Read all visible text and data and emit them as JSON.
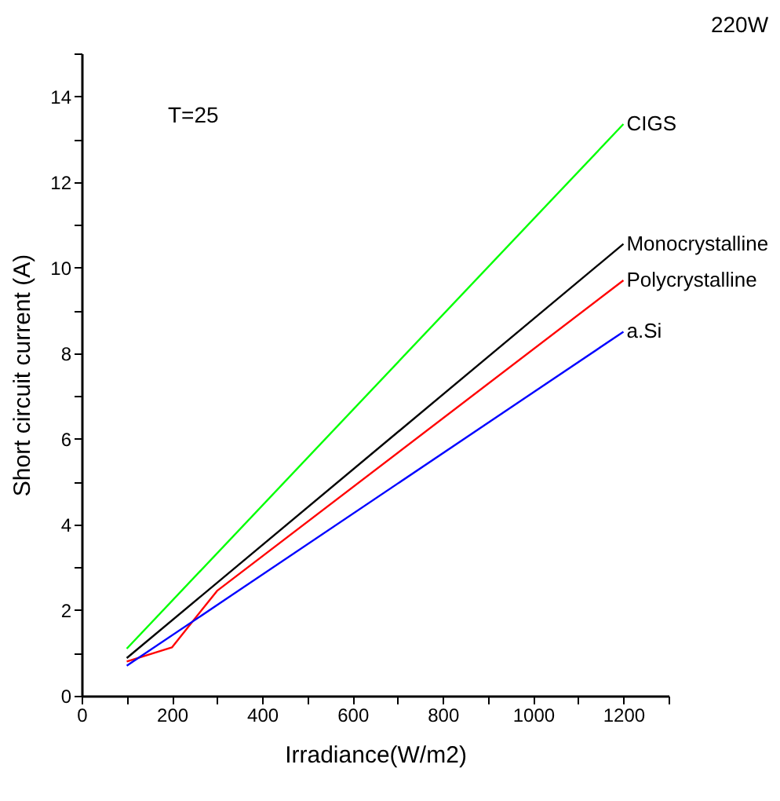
{
  "chart_data": {
    "type": "line",
    "title": "220W",
    "xlabel": "Irradiance(W/m2)",
    "ylabel": "Short circuit current (A)",
    "annotations": [
      "T=25"
    ],
    "xlim": [
      0,
      1300
    ],
    "xticks": [
      0,
      {
        "value": 100,
        "label": null
      },
      200,
      {
        "value": 300,
        "label": null
      },
      400,
      {
        "value": 500,
        "label": null
      },
      600,
      {
        "value": 700,
        "label": null
      },
      800,
      {
        "value": 900,
        "label": null
      },
      1000,
      {
        "value": 1100,
        "label": null
      },
      1200,
      {
        "value": 1300,
        "label": null
      }
    ],
    "ylim": [
      0,
      15
    ],
    "yticks": [
      0,
      {
        "value": 1,
        "label": null
      },
      2,
      {
        "value": 3,
        "label": null
      },
      4,
      {
        "value": 5,
        "label": null
      },
      6,
      {
        "value": 7,
        "label": null
      },
      8,
      {
        "value": 9,
        "label": null
      },
      10,
      {
        "value": 11,
        "label": null
      },
      12,
      {
        "value": 13,
        "label": null
      },
      14,
      {
        "value": 15,
        "label": null
      }
    ],
    "grid": false,
    "marker": "none",
    "line_style": "solid",
    "series": [
      {
        "name": "CIGS",
        "color": "#00ff00",
        "x": [
          100,
          1200
        ],
        "values": [
          1.1,
          13.35
        ]
      },
      {
        "name": "Monocrystalline",
        "color": "#000000",
        "x": [
          100,
          1200
        ],
        "values": [
          0.88,
          10.55
        ]
      },
      {
        "name": "Polycrystalline",
        "color": "#ff0000",
        "x": [
          100,
          200,
          300,
          1200
        ],
        "values": [
          0.8,
          1.13,
          2.45,
          9.7
        ]
      },
      {
        "name": "a.Si",
        "color": "#0000ff",
        "x": [
          100,
          1200
        ],
        "values": [
          0.7,
          8.5
        ]
      }
    ]
  }
}
